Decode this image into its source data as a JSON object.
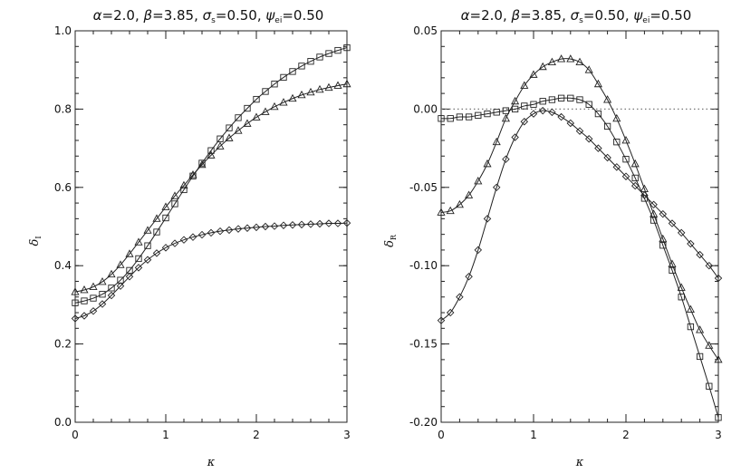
{
  "chart_data": [
    {
      "type": "line",
      "title": "α=2.0, β=3.85, σs=0.50, ψei=0.50",
      "title_parts": {
        "alpha": "2.0",
        "beta": "3.85",
        "sigma": "0.50",
        "sigma_sub": "s",
        "psi": "0.50",
        "psi_sub": "ei"
      },
      "xlabel": "κ",
      "ylabel": "δI",
      "ylabel_main": "δ",
      "ylabel_sub": "I",
      "xlim": [
        0,
        3
      ],
      "ylim": [
        0,
        1.0
      ],
      "xticks": [
        0,
        1,
        2,
        3
      ],
      "xtick_labels": [
        "0",
        "1",
        "2",
        "3"
      ],
      "yticks": [
        0.0,
        0.2,
        0.4,
        0.6,
        0.8,
        1.0
      ],
      "ytick_labels": [
        "0.0",
        "0.2",
        "0.4",
        "0.6",
        "0.8",
        "1.0"
      ],
      "series": [
        {
          "marker": "square",
          "x": [
            0,
            0.1,
            0.2,
            0.3,
            0.4,
            0.5,
            0.6,
            0.7,
            0.8,
            0.9,
            1.0,
            1.1,
            1.2,
            1.3,
            1.4,
            1.5,
            1.6,
            1.7,
            1.8,
            1.9,
            2.0,
            2.1,
            2.2,
            2.3,
            2.4,
            2.5,
            2.6,
            2.7,
            2.8,
            2.9,
            3.0
          ],
          "y": [
            0.305,
            0.31,
            0.317,
            0.327,
            0.343,
            0.363,
            0.388,
            0.418,
            0.451,
            0.486,
            0.522,
            0.558,
            0.594,
            0.629,
            0.662,
            0.694,
            0.724,
            0.752,
            0.778,
            0.802,
            0.825,
            0.845,
            0.864,
            0.881,
            0.896,
            0.91,
            0.922,
            0.933,
            0.942,
            0.95,
            0.957
          ]
        },
        {
          "marker": "triangle",
          "x": [
            0,
            0.1,
            0.2,
            0.3,
            0.4,
            0.5,
            0.6,
            0.7,
            0.8,
            0.9,
            1.0,
            1.1,
            1.2,
            1.3,
            1.4,
            1.5,
            1.6,
            1.7,
            1.8,
            1.9,
            2.0,
            2.1,
            2.2,
            2.3,
            2.4,
            2.5,
            2.6,
            2.7,
            2.8,
            2.9,
            3.0
          ],
          "y": [
            0.333,
            0.338,
            0.346,
            0.359,
            0.378,
            0.402,
            0.43,
            0.46,
            0.49,
            0.52,
            0.55,
            0.578,
            0.605,
            0.632,
            0.658,
            0.682,
            0.705,
            0.726,
            0.745,
            0.763,
            0.779,
            0.793,
            0.806,
            0.817,
            0.827,
            0.836,
            0.843,
            0.85,
            0.855,
            0.86,
            0.864
          ]
        },
        {
          "marker": "diamond",
          "x": [
            0,
            0.1,
            0.2,
            0.3,
            0.4,
            0.5,
            0.6,
            0.7,
            0.8,
            0.9,
            1.0,
            1.1,
            1.2,
            1.3,
            1.4,
            1.5,
            1.6,
            1.7,
            1.8,
            1.9,
            2.0,
            2.1,
            2.2,
            2.3,
            2.4,
            2.5,
            2.6,
            2.7,
            2.8,
            2.9,
            3.0
          ],
          "y": [
            0.265,
            0.272,
            0.284,
            0.302,
            0.324,
            0.348,
            0.372,
            0.395,
            0.415,
            0.432,
            0.446,
            0.457,
            0.466,
            0.473,
            0.479,
            0.484,
            0.488,
            0.491,
            0.494,
            0.496,
            0.498,
            0.5,
            0.501,
            0.503,
            0.504,
            0.505,
            0.506,
            0.507,
            0.508,
            0.508,
            0.509
          ]
        }
      ]
    },
    {
      "type": "line",
      "title": "α=2.0, β=3.85, σs=0.50, ψei=0.50",
      "title_parts": {
        "alpha": "2.0",
        "beta": "3.85",
        "sigma": "0.50",
        "sigma_sub": "s",
        "psi": "0.50",
        "psi_sub": "ei"
      },
      "xlabel": "κ",
      "ylabel": "δR",
      "ylabel_main": "δ",
      "ylabel_sub": "R",
      "xlim": [
        0,
        3
      ],
      "ylim": [
        -0.2,
        0.05
      ],
      "xticks": [
        0,
        1,
        2,
        3
      ],
      "xtick_labels": [
        "0",
        "1",
        "2",
        "3"
      ],
      "yticks": [
        -0.2,
        -0.15,
        -0.1,
        -0.05,
        0.0,
        0.05
      ],
      "ytick_labels": [
        "-0.20",
        "-0.15",
        "-0.10",
        "-0.05",
        "0.00",
        "0.05"
      ],
      "reference_line": {
        "y": 0.0,
        "style": "dotted"
      },
      "series": [
        {
          "marker": "square",
          "x": [
            0,
            0.1,
            0.2,
            0.3,
            0.4,
            0.5,
            0.6,
            0.7,
            0.8,
            0.9,
            1.0,
            1.1,
            1.2,
            1.3,
            1.4,
            1.5,
            1.6,
            1.7,
            1.8,
            1.9,
            2.0,
            2.1,
            2.2,
            2.3,
            2.4,
            2.5,
            2.6,
            2.7,
            2.8,
            2.9,
            3.0
          ],
          "y": [
            -0.006,
            -0.006,
            -0.005,
            -0.005,
            -0.004,
            -0.003,
            -0.002,
            -0.001,
            0.0,
            0.002,
            0.003,
            0.005,
            0.006,
            0.007,
            0.007,
            0.006,
            0.003,
            -0.003,
            -0.011,
            -0.021,
            -0.032,
            -0.044,
            -0.057,
            -0.071,
            -0.087,
            -0.103,
            -0.12,
            -0.139,
            -0.158,
            -0.177,
            -0.197
          ]
        },
        {
          "marker": "triangle",
          "x": [
            0,
            0.1,
            0.2,
            0.3,
            0.4,
            0.5,
            0.6,
            0.7,
            0.8,
            0.9,
            1.0,
            1.1,
            1.2,
            1.3,
            1.4,
            1.5,
            1.6,
            1.7,
            1.8,
            1.9,
            2.0,
            2.1,
            2.2,
            2.3,
            2.4,
            2.5,
            2.6,
            2.7,
            2.8,
            2.9,
            3.0
          ],
          "y": [
            -0.066,
            -0.065,
            -0.061,
            -0.055,
            -0.046,
            -0.035,
            -0.021,
            -0.006,
            0.005,
            0.015,
            0.022,
            0.027,
            0.03,
            0.032,
            0.032,
            0.03,
            0.025,
            0.016,
            0.006,
            -0.006,
            -0.02,
            -0.035,
            -0.051,
            -0.067,
            -0.083,
            -0.099,
            -0.114,
            -0.128,
            -0.141,
            -0.151,
            -0.16
          ]
        },
        {
          "marker": "diamond",
          "x": [
            0,
            0.1,
            0.2,
            0.3,
            0.4,
            0.5,
            0.6,
            0.7,
            0.8,
            0.9,
            1.0,
            1.1,
            1.2,
            1.3,
            1.4,
            1.5,
            1.6,
            1.7,
            1.8,
            1.9,
            2.0,
            2.1,
            2.2,
            2.3,
            2.4,
            2.5,
            2.6,
            2.7,
            2.8,
            2.9,
            3.0
          ],
          "y": [
            -0.135,
            -0.13,
            -0.12,
            -0.107,
            -0.09,
            -0.07,
            -0.05,
            -0.032,
            -0.018,
            -0.008,
            -0.003,
            -0.001,
            -0.002,
            -0.005,
            -0.009,
            -0.014,
            -0.019,
            -0.025,
            -0.031,
            -0.037,
            -0.043,
            -0.049,
            -0.055,
            -0.061,
            -0.067,
            -0.073,
            -0.079,
            -0.086,
            -0.093,
            -0.1,
            -0.108
          ]
        }
      ]
    }
  ]
}
